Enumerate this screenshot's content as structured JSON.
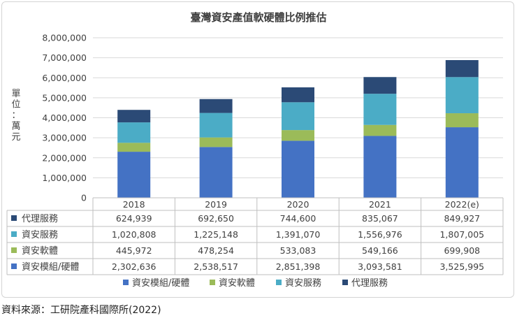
{
  "colors": {
    "series": [
      "#4472C4",
      "#9BBB59",
      "#4BACC6",
      "#2B4A76"
    ],
    "grid": "#d9d9d9",
    "text": "#404040"
  },
  "source_note": "資料來源：工研院產科國際所(2022)",
  "chart_data": {
    "type": "bar",
    "stacked": true,
    "title": "臺灣資安產值軟硬體比例推估",
    "ylabel": "單位：萬元",
    "xlabel": "",
    "ylim": [
      0,
      8000000
    ],
    "yticks": [
      0,
      1000000,
      2000000,
      3000000,
      4000000,
      5000000,
      6000000,
      7000000,
      8000000
    ],
    "ytick_labels": [
      "0",
      "1,000,000",
      "2,000,000",
      "3,000,000",
      "4,000,000",
      "5,000,000",
      "6,000,000",
      "7,000,000",
      "8,000,000"
    ],
    "categories": [
      "2018",
      "2019",
      "2020",
      "2021",
      "2022(e)"
    ],
    "series": [
      {
        "name": "資安模組/硬體",
        "values": [
          2302636,
          2538517,
          2851398,
          3093581,
          3525995
        ],
        "labels": [
          "2,302,636",
          "2,538,517",
          "2,851,398",
          "3,093,581",
          "3,525,995"
        ]
      },
      {
        "name": "資安軟體",
        "values": [
          445972,
          478254,
          533083,
          549166,
          699908
        ],
        "labels": [
          "445,972",
          "478,254",
          "533,083",
          "549,166",
          "699,908"
        ]
      },
      {
        "name": "資安服務",
        "values": [
          1020808,
          1225148,
          1391070,
          1556976,
          1807005
        ],
        "labels": [
          "1,020,808",
          "1,225,148",
          "1,391,070",
          "1,556,976",
          "1,807,005"
        ]
      },
      {
        "name": "代理服務",
        "values": [
          624939,
          692650,
          744600,
          835067,
          849927
        ],
        "labels": [
          "624,939",
          "692,650",
          "744,600",
          "835,067",
          "849,927"
        ]
      }
    ],
    "table_row_order": [
      3,
      2,
      1,
      0
    ],
    "legend": {
      "position": "bottom"
    },
    "grid": true
  }
}
